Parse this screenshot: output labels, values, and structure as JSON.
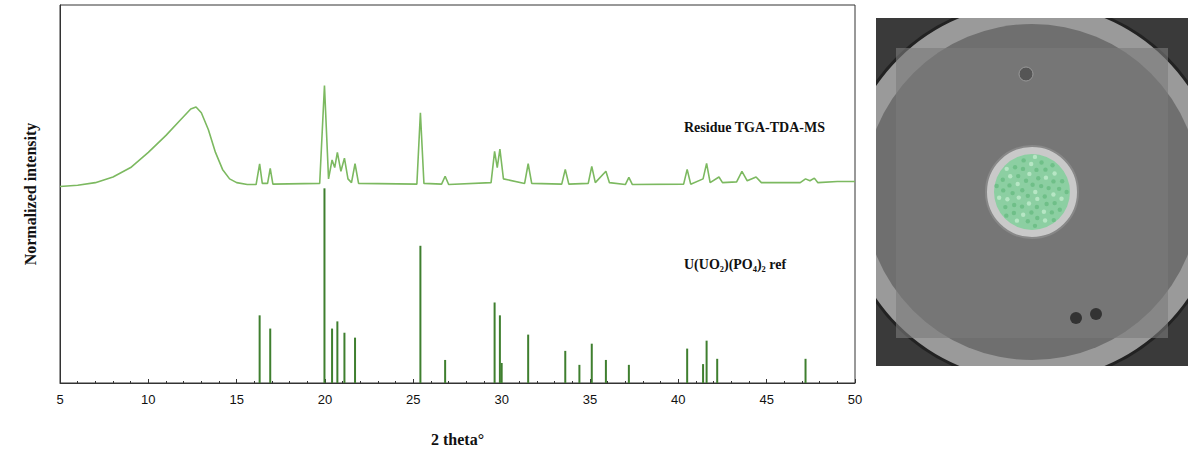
{
  "chart_data": {
    "type": "line",
    "xlabel": "2 theta°",
    "ylabel": "Normalized intensity",
    "xlim": [
      5,
      50
    ],
    "xticks": [
      5,
      10,
      15,
      20,
      25,
      30,
      35,
      40,
      45,
      50
    ],
    "ylim": [
      0,
      100
    ],
    "tick_labels": "x",
    "grid": false,
    "series": [
      {
        "name": "Residue TGA-TDA-MS",
        "type": "line",
        "color": "#7cb960",
        "x": [
          5,
          6,
          7,
          8,
          9,
          10,
          11,
          11.8,
          12.4,
          12.7,
          13,
          13.4,
          13.8,
          14.2,
          14.6,
          15.0,
          15.6,
          16.1,
          16.3,
          16.45,
          16.75,
          16.9,
          17.05,
          19.7,
          19.97,
          20.2,
          20.4,
          20.55,
          20.7,
          20.9,
          21.1,
          21.3,
          21.5,
          21.7,
          21.9,
          25.2,
          25.4,
          25.6,
          26.6,
          26.8,
          27.0,
          29.4,
          29.6,
          29.75,
          29.9,
          30.1,
          31.3,
          31.5,
          31.7,
          33.4,
          33.6,
          33.8,
          34.9,
          35.1,
          35.3,
          35.9,
          36.1,
          37.0,
          37.2,
          37.4,
          40.3,
          40.5,
          40.7,
          41.4,
          41.6,
          41.8,
          42.3,
          42.5,
          43.3,
          43.6,
          43.9,
          44.4,
          44.7,
          46.9,
          47.2,
          47.45,
          47.7,
          47.9,
          49.0,
          50
        ],
        "values": [
          52,
          52.3,
          53,
          54.5,
          57,
          61,
          65.5,
          69.5,
          72.5,
          73,
          71.5,
          67,
          61,
          56.5,
          54,
          53,
          52.5,
          52.5,
          58,
          52.8,
          52.8,
          56.8,
          52.6,
          52.8,
          78.7,
          54,
          59,
          57,
          61,
          56,
          59.5,
          54,
          53,
          58,
          52.8,
          52.6,
          71.5,
          52.8,
          52.6,
          54.7,
          52.5,
          53,
          61.3,
          57,
          61.9,
          54,
          52.8,
          58,
          52.8,
          52.6,
          56.5,
          52.6,
          52.8,
          57.3,
          53,
          56,
          53,
          52.5,
          54.4,
          52.5,
          52.6,
          56.5,
          52.6,
          54,
          58.1,
          53,
          54.5,
          53,
          53.2,
          56,
          53.5,
          54.5,
          53,
          53,
          54,
          53.5,
          54.2,
          53,
          53.3,
          53.3
        ]
      },
      {
        "name": "U(UO₂)(PO₄)₂ ref",
        "type": "stick",
        "color": "#3f7f2f",
        "x": [
          16.3,
          16.9,
          19.97,
          20.4,
          20.7,
          21.1,
          21.7,
          25.4,
          26.8,
          29.6,
          29.9,
          30.0,
          31.5,
          33.6,
          34.4,
          35.1,
          35.9,
          37.2,
          40.5,
          41.4,
          41.6,
          42.2,
          47.2
        ],
        "values": [
          17.9,
          14.4,
          51.5,
          14.4,
          16.3,
          13.3,
          12,
          36.3,
          6.1,
          21.3,
          17.9,
          5.3,
          12.8,
          8.5,
          4.8,
          10.4,
          6.1,
          4.8,
          9.1,
          5,
          11.2,
          6.4,
          6.4
        ]
      }
    ]
  }
}
